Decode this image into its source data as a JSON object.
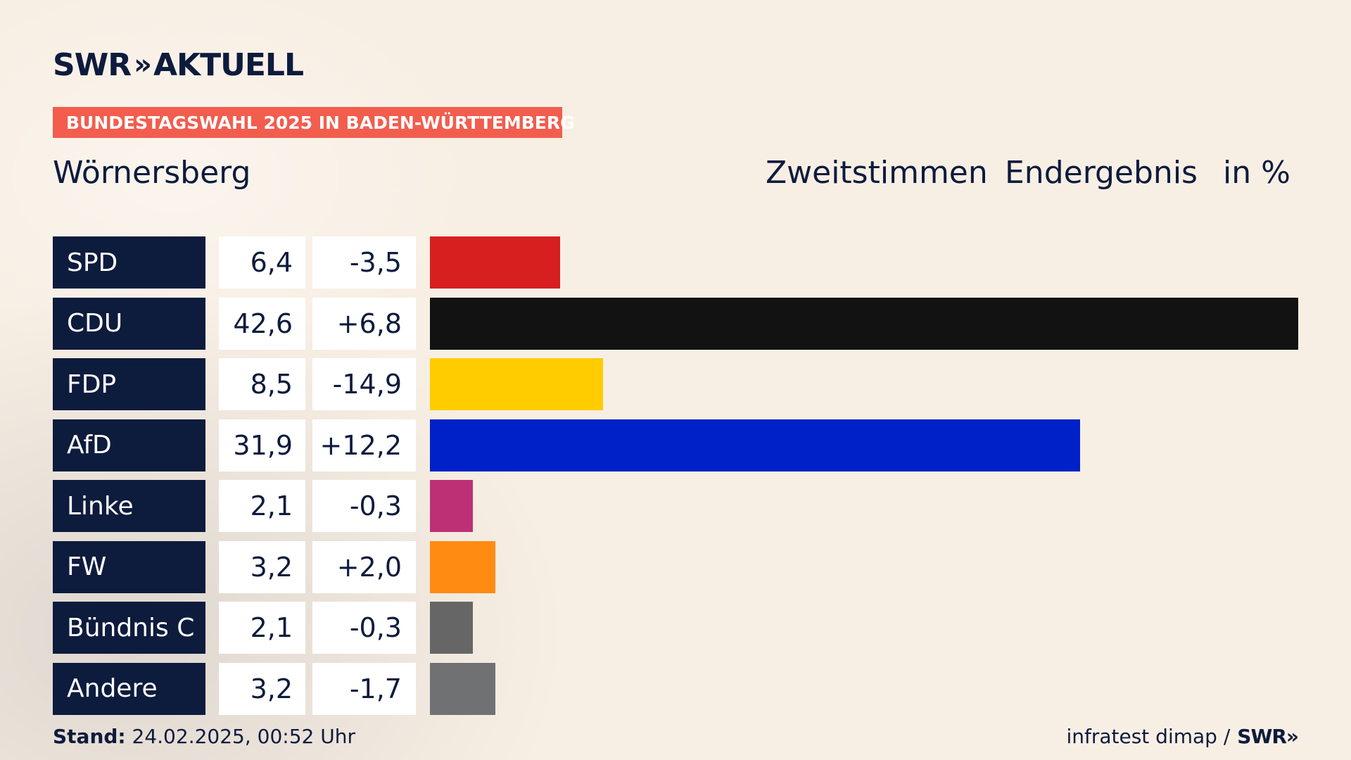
{
  "brand": {
    "name": "SWR",
    "chevrons": "»",
    "product": "AKTUELL"
  },
  "banner": "BUNDESTAGSWAHL 2025 IN BADEN-WÜRTTEMBERG",
  "place": "Wörnersberg",
  "headers": {
    "vote_type": "Zweitstimmen",
    "status": "Endergebnis",
    "unit": "in %"
  },
  "chart_data": {
    "type": "bar",
    "orientation": "horizontal",
    "categories": [
      "SPD",
      "CDU",
      "FDP",
      "AfD",
      "Linke",
      "FW",
      "Bündnis C",
      "Andere"
    ],
    "values": [
      6.4,
      42.6,
      8.5,
      31.9,
      2.1,
      3.2,
      2.1,
      3.2
    ],
    "value_labels": [
      "6,4",
      "42,6",
      "8,5",
      "31,9",
      "2,1",
      "3,2",
      "2,1",
      "3,2"
    ],
    "diff_labels": [
      "-3,5",
      "+6,8",
      "-14,9",
      "+12,2",
      "-0,3",
      "+2,0",
      "-0,3",
      "-1,7"
    ],
    "diffs": [
      -3.5,
      6.8,
      -14.9,
      12.2,
      -0.3,
      2.0,
      -0.3,
      -1.7
    ],
    "colors": [
      "#d71f1f",
      "#121212",
      "#ffcc00",
      "#0021c7",
      "#be3075",
      "#ff8b13",
      "#666666",
      "#707173"
    ],
    "xlim": [
      0,
      42.6
    ]
  },
  "footer": {
    "stand_label": "Stand:",
    "stand_value": "24.02.2025, 00:52 Uhr",
    "source": "infratest dimap /",
    "source_brand": "SWR",
    "source_chevrons": "»"
  }
}
